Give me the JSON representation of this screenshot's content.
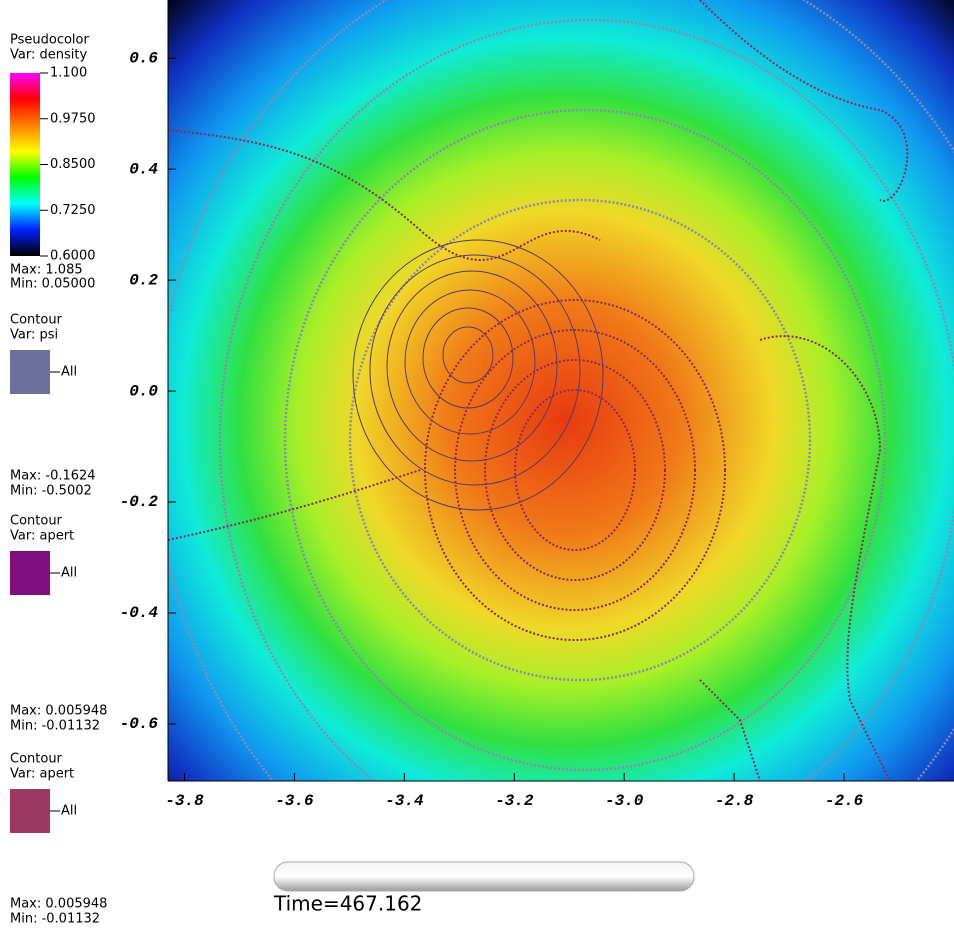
{
  "chart_data": {
    "type": "pseudocolor",
    "xlim": [
      -3.83,
      -2.4
    ],
    "ylim": [
      -0.703,
      0.705
    ],
    "xticks": [
      -3.8,
      -3.6,
      -3.4,
      -3.2,
      {
        "value": -3.0,
        "label": "-3.0"
      },
      -2.8,
      -2.6
    ],
    "yticks": [
      0.6,
      0.4,
      0.2,
      {
        "value": 0,
        "label": "0.0"
      },
      -0.2,
      -0.4,
      -0.6
    ],
    "colorbar": {
      "title": "Pseudocolor",
      "var": "Var: density",
      "clim": [
        0.6,
        1.1
      ],
      "colors": [
        "#000000",
        "#0020ff",
        "#00ffff",
        "#00ff00",
        "#ffff00",
        "#ff8000",
        "#ff0000",
        "#ff00ff"
      ],
      "ticks": [
        {
          "value": 1.1,
          "label": "1.100"
        },
        {
          "value": 0.975,
          "label": "0.9750"
        },
        {
          "value": 0.85,
          "label": "0.8500"
        },
        {
          "value": 0.725,
          "label": "0.7250"
        },
        {
          "value": 0.6,
          "label": "0.6000"
        }
      ],
      "max": "Max: 1.085",
      "min": "Min: 0.05000"
    },
    "contours": [
      {
        "title": "Contour",
        "var": "Var: psi",
        "color": "#6b6f9a",
        "label": "All",
        "max": "Max: -0.1624",
        "min": "Min: -0.5002"
      },
      {
        "title": "Contour",
        "var": "Var: apert",
        "color": "#80107f",
        "label": "All",
        "max": "Max: 0.005948",
        "min": "Min: -0.01132"
      },
      {
        "title": "Contour",
        "var": "Var: apert",
        "color": "#9a3a62",
        "label": "All",
        "max": "Max: 0.005948",
        "min": "Min: -0.01132"
      }
    ],
    "time": "Time=467.162"
  }
}
